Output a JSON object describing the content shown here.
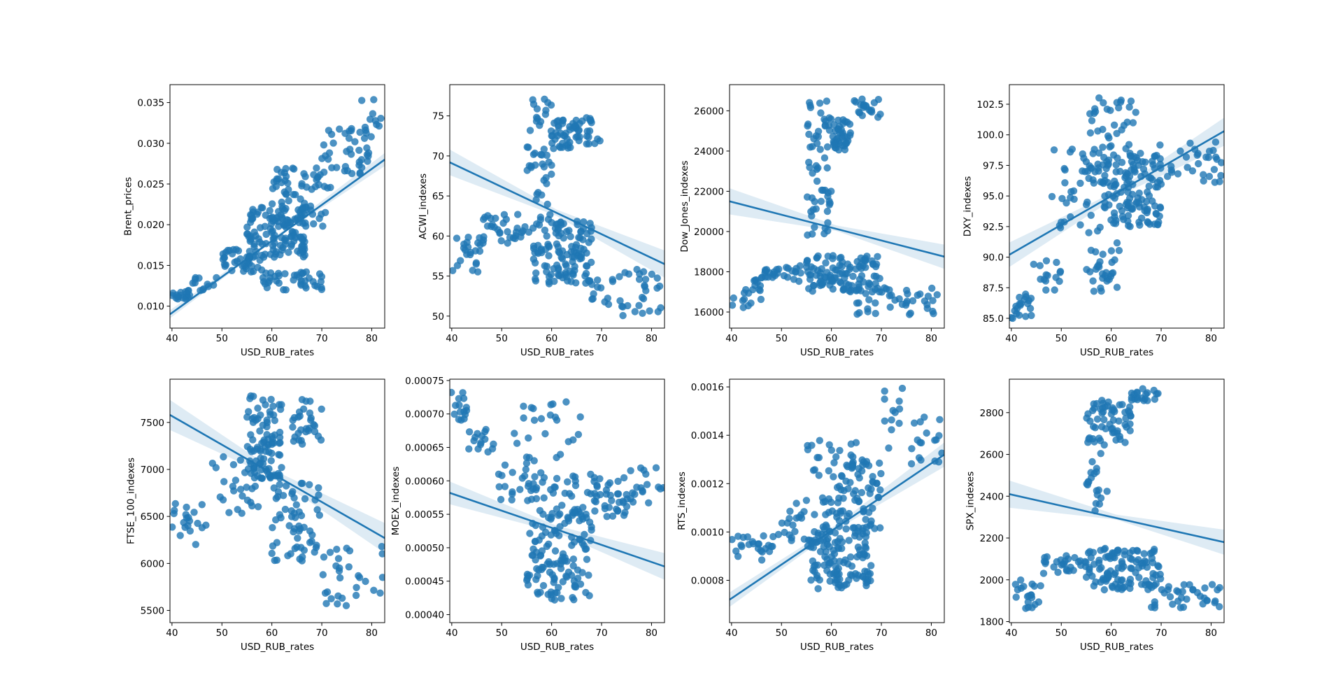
{
  "figure": {
    "style": {
      "point_color": "#1f77b4",
      "line_color": "#1f77b4",
      "band_color": "#1f77b4",
      "background": "#ffffff"
    }
  },
  "chart_data": [
    {
      "type": "scatter",
      "xlabel": "USD_RUB_rates",
      "ylabel": "Brent_prices",
      "xlim": [
        39.6,
        82.6
      ],
      "ylim": [
        0.0073,
        0.0372
      ],
      "xticks": [
        40,
        50,
        60,
        70,
        80
      ],
      "yticks": [
        0.01,
        0.015,
        0.02,
        0.025,
        0.03,
        0.035
      ],
      "ytick_labels": [
        "0.010",
        "0.015",
        "0.020",
        "0.025",
        "0.030",
        "0.035"
      ],
      "regression": {
        "x": [
          39.6,
          82.6
        ],
        "y": [
          0.009,
          0.028
        ]
      },
      "confidence_band": {
        "x": [
          39.6,
          61,
          82.6
        ],
        "lower": [
          0.0085,
          0.0184,
          0.0272
        ],
        "upper": [
          0.0095,
          0.0187,
          0.0288
        ]
      },
      "clusters": [
        {
          "n": 18,
          "x": [
            39.8,
            44
          ],
          "y": [
            0.0108,
            0.012
          ]
        },
        {
          "n": 12,
          "x": [
            44,
            49
          ],
          "y": [
            0.0118,
            0.0135
          ]
        },
        {
          "n": 40,
          "x": [
            50,
            58
          ],
          "y": [
            0.0142,
            0.017
          ]
        },
        {
          "n": 120,
          "x": [
            55,
            67
          ],
          "y": [
            0.016,
            0.0222
          ]
        },
        {
          "n": 70,
          "x": [
            60,
            72
          ],
          "y": [
            0.019,
            0.027
          ]
        },
        {
          "n": 40,
          "x": [
            70,
            80
          ],
          "y": [
            0.026,
            0.032
          ]
        },
        {
          "n": 10,
          "x": [
            78,
            82.5
          ],
          "y": [
            0.0315,
            0.036
          ]
        },
        {
          "n": 40,
          "x": [
            58,
            70
          ],
          "y": [
            0.012,
            0.0142
          ]
        }
      ]
    },
    {
      "type": "scatter",
      "xlabel": "USD_RUB_rates",
      "ylabel": "ACWI_indexes",
      "xlim": [
        39.6,
        82.6
      ],
      "ylim": [
        48.5,
        78.9
      ],
      "xticks": [
        40,
        50,
        60,
        70,
        80
      ],
      "yticks": [
        50,
        55,
        60,
        65,
        70,
        75
      ],
      "ytick_labels": [
        "50",
        "55",
        "60",
        "65",
        "70",
        "75"
      ],
      "regression": {
        "x": [
          39.6,
          82.6
        ],
        "y": [
          69.2,
          56.5
        ]
      },
      "confidence_band": {
        "x": [
          39.6,
          61,
          82.6
        ],
        "lower": [
          67.6,
          62.5,
          54.8
        ],
        "upper": [
          70.8,
          63.3,
          58.2
        ]
      },
      "clusters": [
        {
          "n": 25,
          "x": [
            39.8,
            47
          ],
          "y": [
            55.5,
            60.0
          ]
        },
        {
          "n": 30,
          "x": [
            46,
            56
          ],
          "y": [
            59.0,
            62.8
          ]
        },
        {
          "n": 120,
          "x": [
            56,
            68
          ],
          "y": [
            54.0,
            62.0
          ]
        },
        {
          "n": 45,
          "x": [
            55,
            60
          ],
          "y": [
            62.0,
            77.5
          ]
        },
        {
          "n": 35,
          "x": [
            60,
            65
          ],
          "y": [
            70.5,
            74.5
          ]
        },
        {
          "n": 25,
          "x": [
            64,
            70
          ],
          "y": [
            71.5,
            74.8
          ]
        },
        {
          "n": 40,
          "x": [
            68,
            82
          ],
          "y": [
            50.0,
            56.0
          ]
        }
      ]
    },
    {
      "type": "scatter",
      "xlabel": "USD_RUB_rates",
      "ylabel": "Dow_Jones_indexes",
      "xlim": [
        39.6,
        82.6
      ],
      "ylim": [
        15200,
        27300
      ],
      "xticks": [
        40,
        50,
        60,
        70,
        80
      ],
      "yticks": [
        16000,
        18000,
        20000,
        22000,
        24000,
        26000
      ],
      "ytick_labels": [
        "16000",
        "18000",
        "20000",
        "22000",
        "24000",
        "26000"
      ],
      "regression": {
        "x": [
          39.6,
          82.6
        ],
        "y": [
          21500,
          18750
        ]
      },
      "confidence_band": {
        "x": [
          39.6,
          61,
          82.6
        ],
        "lower": [
          20850,
          20030,
          18150
        ],
        "upper": [
          22150,
          20300,
          19350
        ]
      },
      "clusters": [
        {
          "n": 20,
          "x": [
            39.8,
            46
          ],
          "y": [
            16200,
            17600
          ]
        },
        {
          "n": 30,
          "x": [
            46,
            56
          ],
          "y": [
            17500,
            18300
          ]
        },
        {
          "n": 110,
          "x": [
            55,
            70
          ],
          "y": [
            17000,
            18800
          ]
        },
        {
          "n": 40,
          "x": [
            65,
            82
          ],
          "y": [
            15700,
            17200
          ]
        },
        {
          "n": 60,
          "x": [
            55,
            60
          ],
          "y": [
            19800,
            26600
          ]
        },
        {
          "n": 40,
          "x": [
            60,
            64
          ],
          "y": [
            24000,
            25600
          ]
        },
        {
          "n": 20,
          "x": [
            64,
            70
          ],
          "y": [
            25600,
            26600
          ]
        }
      ]
    },
    {
      "type": "scatter",
      "xlabel": "USD_RUB_rates",
      "ylabel": "DXY_indexes",
      "xlim": [
        39.6,
        82.6
      ],
      "ylim": [
        84.2,
        104.1
      ],
      "xticks": [
        40,
        50,
        60,
        70,
        80
      ],
      "yticks": [
        85.0,
        87.5,
        90.0,
        92.5,
        95.0,
        97.5,
        100.0,
        102.5
      ],
      "ytick_labels": [
        "85.0",
        "87.5",
        "90.0",
        "92.5",
        "95.0",
        "97.5",
        "100.0",
        "102.5"
      ],
      "regression": {
        "x": [
          39.6,
          82.6
        ],
        "y": [
          90.2,
          100.3
        ]
      },
      "confidence_band": {
        "x": [
          39.6,
          61,
          82.6
        ],
        "lower": [
          89.2,
          94.9,
          99.1
        ],
        "upper": [
          91.2,
          95.4,
          101.4
        ]
      },
      "clusters": [
        {
          "n": 20,
          "x": [
            39.8,
            44
          ],
          "y": [
            85.0,
            87.0
          ]
        },
        {
          "n": 15,
          "x": [
            44,
            50
          ],
          "y": [
            87.0,
            90.0
          ]
        },
        {
          "n": 40,
          "x": [
            48,
            58
          ],
          "y": [
            92.0,
            99.0
          ]
        },
        {
          "n": 120,
          "x": [
            58,
            70
          ],
          "y": [
            92.5,
            98.5
          ]
        },
        {
          "n": 50,
          "x": [
            55,
            65
          ],
          "y": [
            96.0,
            103.2
          ]
        },
        {
          "n": 30,
          "x": [
            55,
            62
          ],
          "y": [
            87.0,
            92.0
          ]
        },
        {
          "n": 35,
          "x": [
            68,
            82.5
          ],
          "y": [
            96.0,
            99.5
          ]
        }
      ]
    },
    {
      "type": "scatter",
      "xlabel": "USD_RUB_rates",
      "ylabel": "FTSE_100_indexes",
      "xlim": [
        39.6,
        82.6
      ],
      "ylim": [
        5370,
        7960
      ],
      "xticks": [
        40,
        50,
        60,
        70,
        80
      ],
      "yticks": [
        5500,
        6000,
        6500,
        7000,
        7500
      ],
      "ytick_labels": [
        "5500",
        "6000",
        "6500",
        "7000",
        "7500"
      ],
      "regression": {
        "x": [
          39.6,
          82.6
        ],
        "y": [
          7580,
          6270
        ]
      },
      "confidence_band": {
        "x": [
          39.6,
          61,
          82.6
        ],
        "lower": [
          7420,
          6895,
          6110
        ],
        "upper": [
          7740,
          6975,
          6430
        ]
      },
      "clusters": [
        {
          "n": 20,
          "x": [
            39.8,
            47
          ],
          "y": [
            6200,
            6650
          ]
        },
        {
          "n": 30,
          "x": [
            48,
            58
          ],
          "y": [
            6500,
            7150
          ]
        },
        {
          "n": 90,
          "x": [
            55,
            62
          ],
          "y": [
            6900,
            7800
          ]
        },
        {
          "n": 60,
          "x": [
            60,
            70
          ],
          "y": [
            6000,
            6900
          ]
        },
        {
          "n": 30,
          "x": [
            64,
            70
          ],
          "y": [
            7250,
            7750
          ]
        },
        {
          "n": 30,
          "x": [
            70,
            82.5
          ],
          "y": [
            5550,
            6200
          ]
        }
      ]
    },
    {
      "type": "scatter",
      "xlabel": "USD_RUB_rates",
      "ylabel": "MOEX_indexes",
      "xlim": [
        39.6,
        82.6
      ],
      "ylim": [
        0.000388,
        0.000752
      ],
      "xticks": [
        40,
        50,
        60,
        70,
        80
      ],
      "yticks": [
        0.0004,
        0.00045,
        0.0005,
        0.00055,
        0.0006,
        0.00065,
        0.0007,
        0.00075
      ],
      "ytick_labels": [
        "0.00040",
        "0.00045",
        "0.00050",
        "0.00055",
        "0.00060",
        "0.00065",
        "0.00070",
        "0.00075"
      ],
      "regression": {
        "x": [
          39.6,
          82.6
        ],
        "y": [
          0.000582,
          0.000472
        ]
      },
      "confidence_band": {
        "x": [
          39.6,
          61,
          82.6
        ],
        "lower": [
          0.000565,
          0.000523,
          0.000452
        ],
        "upper": [
          0.000599,
          0.000533,
          0.000492
        ]
      },
      "clusters": [
        {
          "n": 15,
          "x": [
            39.8,
            43
          ],
          "y": [
            0.00069,
            0.000735
          ]
        },
        {
          "n": 15,
          "x": [
            43,
            50
          ],
          "y": [
            0.00064,
            0.00068
          ]
        },
        {
          "n": 40,
          "x": [
            49,
            62
          ],
          "y": [
            0.00057,
            0.00064
          ]
        },
        {
          "n": 120,
          "x": [
            55,
            68
          ],
          "y": [
            0.00042,
            0.00056
          ]
        },
        {
          "n": 60,
          "x": [
            62,
            75
          ],
          "y": [
            0.00054,
            0.00061
          ]
        },
        {
          "n": 20,
          "x": [
            52,
            67
          ],
          "y": [
            0.00065,
            0.00072
          ]
        },
        {
          "n": 20,
          "x": [
            75,
            82.5
          ],
          "y": [
            0.00056,
            0.00062
          ]
        }
      ]
    },
    {
      "type": "scatter",
      "xlabel": "USD_RUB_rates",
      "ylabel": "RTS_indexes",
      "xlim": [
        39.6,
        82.6
      ],
      "ylim": [
        0.000625,
        0.001632
      ],
      "xticks": [
        40,
        50,
        60,
        70,
        80
      ],
      "yticks": [
        0.0008,
        0.001,
        0.0012,
        0.0014,
        0.0016
      ],
      "ytick_labels": [
        "0.0008",
        "0.0010",
        "0.0012",
        "0.0014",
        "0.0016"
      ],
      "regression": {
        "x": [
          39.6,
          82.6
        ],
        "y": [
          0.00072,
          0.00132
        ]
      },
      "confidence_band": {
        "x": [
          39.6,
          61,
          82.6
        ],
        "lower": [
          0.00069,
          0.00101,
          0.00127
        ],
        "upper": [
          0.00075,
          0.00103,
          0.00137
        ]
      },
      "clusters": [
        {
          "n": 25,
          "x": [
            39.8,
            50
          ],
          "y": [
            0.00088,
            0.00099
          ]
        },
        {
          "n": 40,
          "x": [
            50,
            60
          ],
          "y": [
            0.00095,
            0.00115
          ]
        },
        {
          "n": 110,
          "x": [
            55,
            68
          ],
          "y": [
            0.00076,
            0.001
          ]
        },
        {
          "n": 80,
          "x": [
            60,
            70
          ],
          "y": [
            0.001,
            0.0013
          ]
        },
        {
          "n": 30,
          "x": [
            70,
            82.5
          ],
          "y": [
            0.00125,
            0.0016
          ]
        },
        {
          "n": 20,
          "x": [
            55,
            65
          ],
          "y": [
            0.0012,
            0.00138
          ]
        }
      ]
    },
    {
      "type": "scatter",
      "xlabel": "USD_RUB_rates",
      "ylabel": "SPX_indexes",
      "xlim": [
        39.6,
        82.6
      ],
      "ylim": [
        1795,
        2960
      ],
      "xticks": [
        40,
        50,
        60,
        70,
        80
      ],
      "yticks": [
        1800,
        2000,
        2200,
        2400,
        2600,
        2800
      ],
      "ytick_labels": [
        "1800",
        "2000",
        "2200",
        "2400",
        "2600",
        "2800"
      ],
      "regression": {
        "x": [
          39.6,
          82.6
        ],
        "y": [
          2410,
          2180
        ]
      },
      "confidence_band": {
        "x": [
          39.6,
          61,
          82.6
        ],
        "lower": [
          2345,
          2288,
          2120
        ],
        "upper": [
          2475,
          2312,
          2240
        ]
      },
      "clusters": [
        {
          "n": 20,
          "x": [
            39.8,
            46
          ],
          "y": [
            1860,
            2000
          ]
        },
        {
          "n": 30,
          "x": [
            46,
            56
          ],
          "y": [
            2030,
            2120
          ]
        },
        {
          "n": 110,
          "x": [
            55,
            70
          ],
          "y": [
            1950,
            2150
          ]
        },
        {
          "n": 35,
          "x": [
            68,
            82.5
          ],
          "y": [
            1850,
            1980
          ]
        },
        {
          "n": 50,
          "x": [
            55,
            60
          ],
          "y": [
            2300,
            2870
          ]
        },
        {
          "n": 30,
          "x": [
            60,
            64
          ],
          "y": [
            2650,
            2850
          ]
        },
        {
          "n": 20,
          "x": [
            64,
            70
          ],
          "y": [
            2850,
            2920
          ]
        }
      ]
    }
  ]
}
